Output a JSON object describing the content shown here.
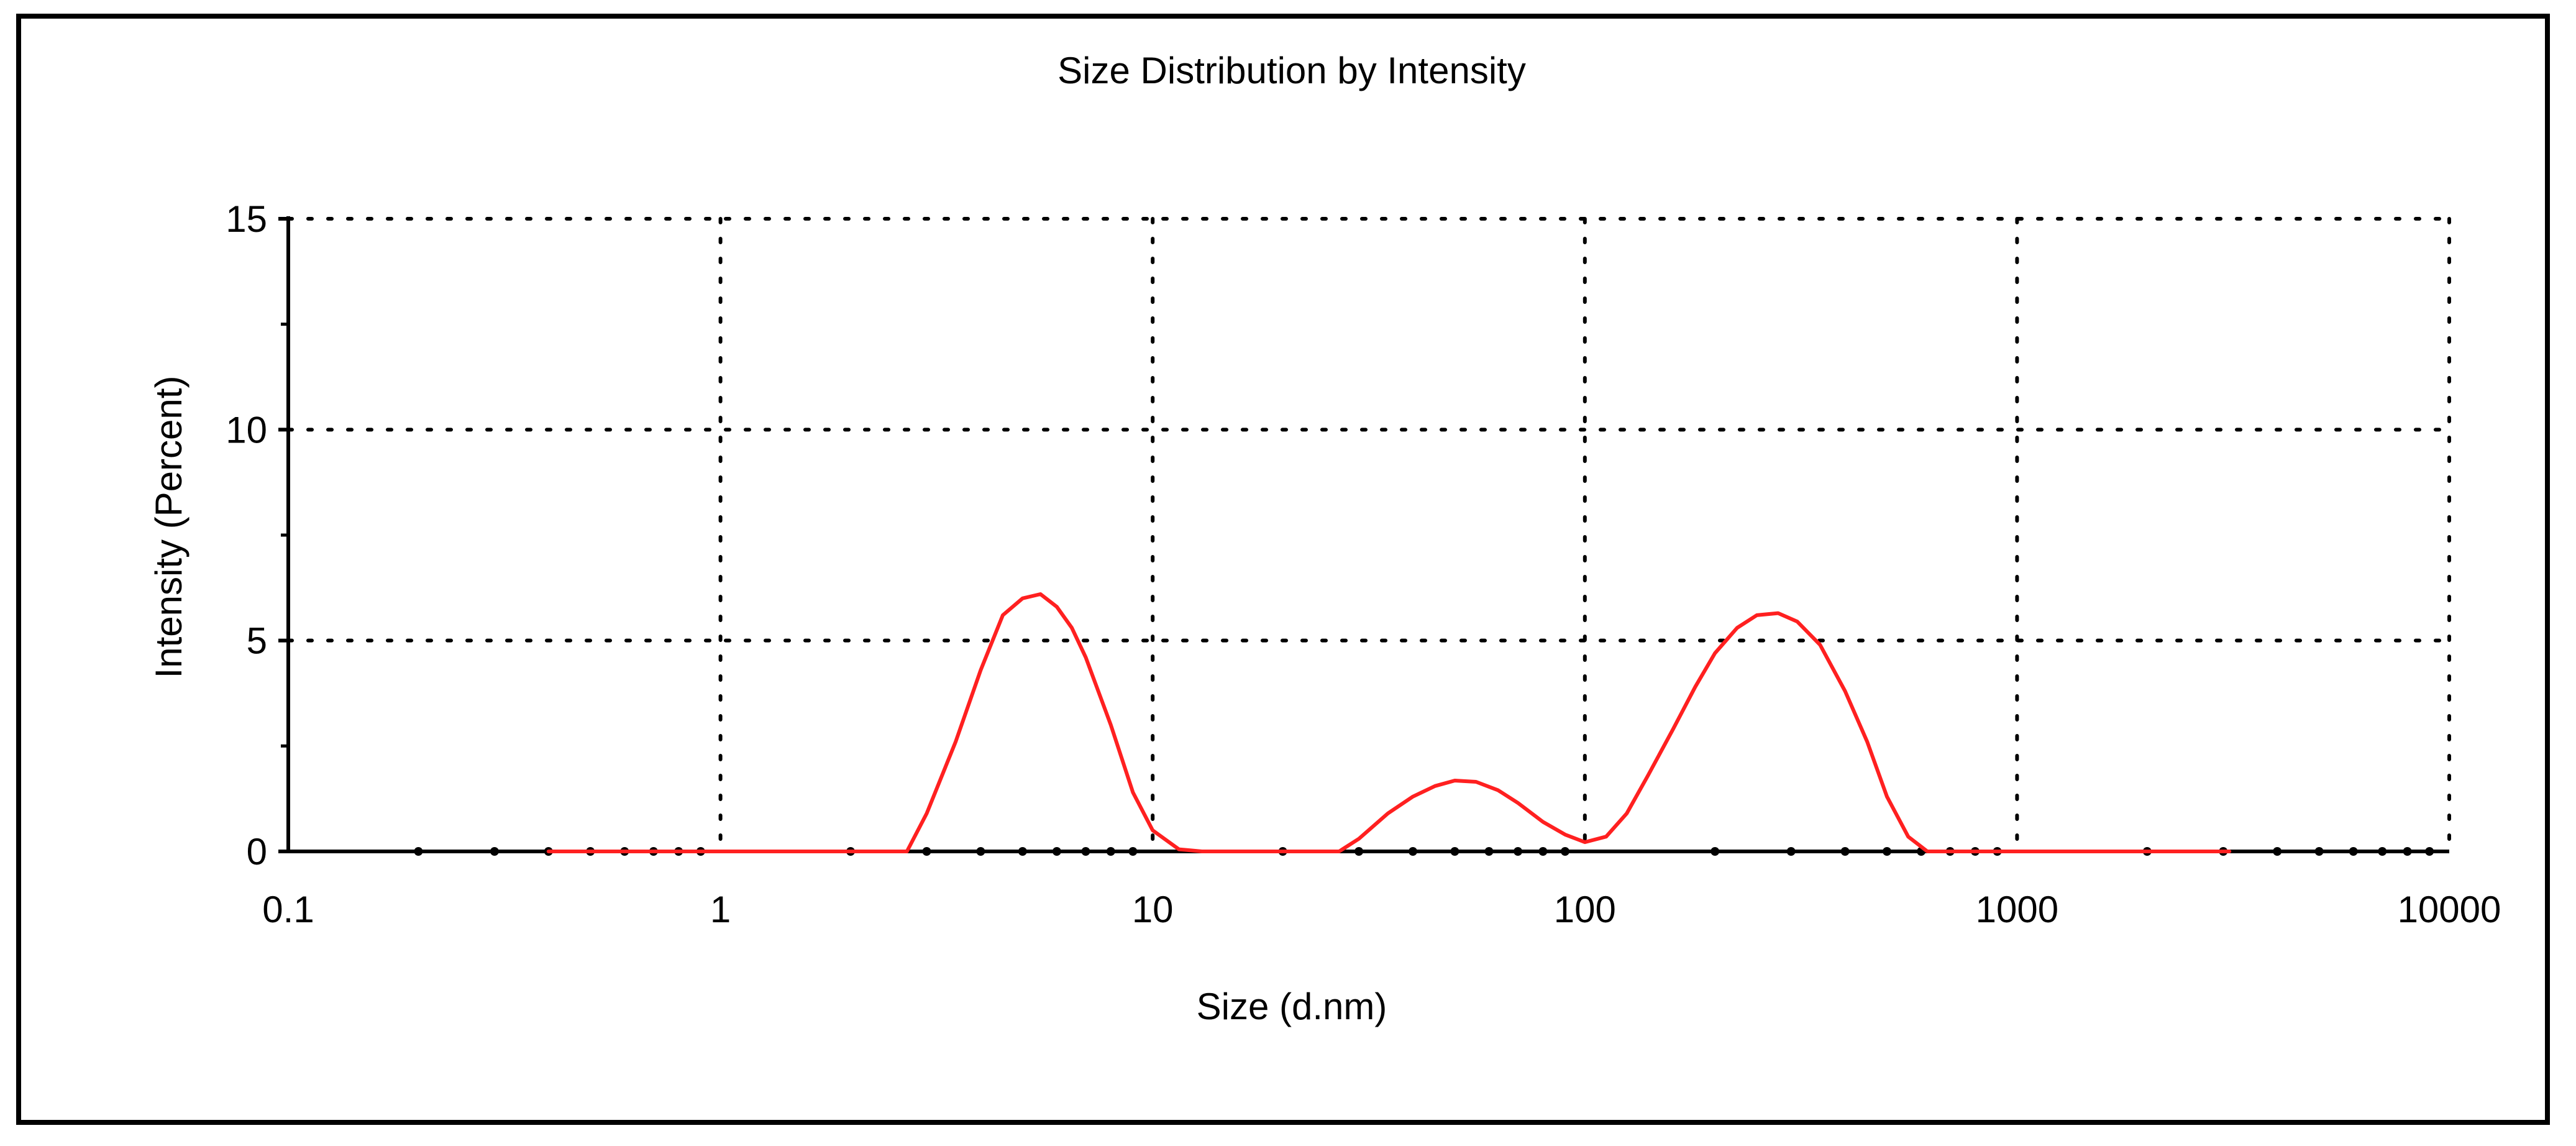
{
  "chart_data": {
    "type": "line",
    "title": "Size Distribution by Intensity",
    "xlabel": "Size (d.nm)",
    "ylabel": "Intensity (Percent)",
    "x_scale": "log",
    "xlim": [
      0.1,
      10000
    ],
    "ylim": [
      0,
      15
    ],
    "x_ticks": [
      0.1,
      1,
      10,
      100,
      1000,
      10000
    ],
    "x_tick_labels": [
      "0.1",
      "1",
      "10",
      "100",
      "1000",
      "10000"
    ],
    "y_ticks": [
      0,
      5,
      10,
      15
    ],
    "y_tick_labels": [
      "0",
      "5",
      "10",
      "15"
    ],
    "grid": true,
    "colors": {
      "series": "#ff2020",
      "axis": "#000000",
      "grid": "#000000"
    },
    "series": [
      {
        "name": "Intensity",
        "points": [
          [
            0.4,
            0
          ],
          [
            1.0,
            0
          ],
          [
            2.0,
            0
          ],
          [
            2.7,
            0
          ],
          [
            3.0,
            0.9
          ],
          [
            3.5,
            2.6
          ],
          [
            4.0,
            4.3
          ],
          [
            4.5,
            5.6
          ],
          [
            5.0,
            6.0
          ],
          [
            5.5,
            6.1
          ],
          [
            6.0,
            5.8
          ],
          [
            6.5,
            5.3
          ],
          [
            7.0,
            4.6
          ],
          [
            8.0,
            3.0
          ],
          [
            9.0,
            1.4
          ],
          [
            10.0,
            0.5
          ],
          [
            11.5,
            0.05
          ],
          [
            13,
            0
          ],
          [
            20,
            0
          ],
          [
            27,
            0
          ],
          [
            30,
            0.3
          ],
          [
            35,
            0.9
          ],
          [
            40,
            1.3
          ],
          [
            45,
            1.55
          ],
          [
            50,
            1.68
          ],
          [
            56,
            1.65
          ],
          [
            63,
            1.45
          ],
          [
            70,
            1.15
          ],
          [
            80,
            0.7
          ],
          [
            90,
            0.4
          ],
          [
            100,
            0.22
          ],
          [
            112,
            0.35
          ],
          [
            125,
            0.9
          ],
          [
            140,
            1.8
          ],
          [
            160,
            2.9
          ],
          [
            180,
            3.9
          ],
          [
            200,
            4.7
          ],
          [
            225,
            5.3
          ],
          [
            250,
            5.6
          ],
          [
            280,
            5.65
          ],
          [
            310,
            5.45
          ],
          [
            350,
            4.9
          ],
          [
            400,
            3.8
          ],
          [
            450,
            2.6
          ],
          [
            500,
            1.3
          ],
          [
            560,
            0.35
          ],
          [
            620,
            0
          ],
          [
            700,
            0
          ],
          [
            1000,
            0
          ],
          [
            2000,
            0
          ],
          [
            3100,
            0
          ]
        ]
      }
    ]
  }
}
